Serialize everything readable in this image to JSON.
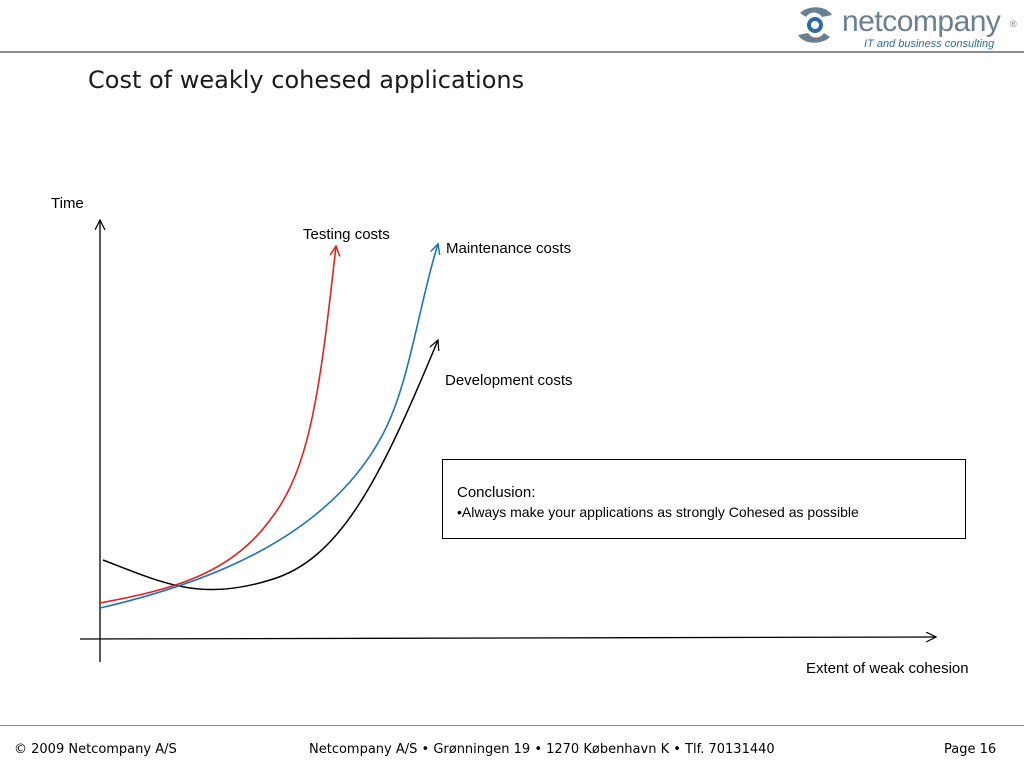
{
  "header": {
    "logo_word": "netcompany",
    "logo_reg": "®",
    "logo_tagline": "IT and business consulting",
    "brand_colors": {
      "gray": "#6b7f92",
      "blue": "#2f6aa0"
    }
  },
  "slide": {
    "title": "Cost of weakly cohesed applications"
  },
  "chart_data": {
    "type": "line",
    "ylabel": "Time",
    "xlabel": "Extent of weak cohesion",
    "grid": false,
    "legend": "inline labels",
    "series": [
      {
        "name": "Testing costs",
        "color": "#e8201c"
      },
      {
        "name": "Maintenance costs",
        "color": "#1b75bb"
      },
      {
        "name": "Development costs",
        "color": "#000000"
      }
    ]
  },
  "conclusion": {
    "title": "Conclusion:",
    "point": "•Always make your applications as strongly Cohesed as possible"
  },
  "footer": {
    "copyright": "© 2009 Netcompany A/S",
    "address": "Netcompany A/S • Grønningen 19 • 1270 København K • Tlf. 70131440",
    "page": "Page 16"
  }
}
